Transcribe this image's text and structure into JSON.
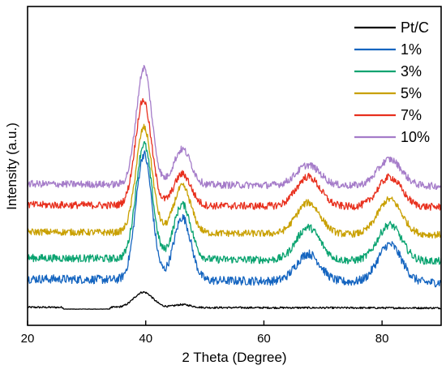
{
  "chart_data": {
    "type": "line",
    "xlabel": "2 Theta (Degree)",
    "ylabel": "Intensity (a.u.)",
    "xlim": [
      20,
      90
    ],
    "xticks": [
      20,
      40,
      60,
      80
    ],
    "grid": false,
    "legend_position": "top-right",
    "stacked_offset": true,
    "series": [
      {
        "name": "Pt/C",
        "color": "#000000",
        "peaks": [
          {
            "x": 39.6,
            "height": 0.42
          },
          {
            "x": 46.2,
            "height": 0.08
          }
        ],
        "baseline_start": 0.05,
        "baseline_end": 0.03
      },
      {
        "name": "1%",
        "color": "#1565c0",
        "peaks": [
          {
            "x": 39.7,
            "height": 1.0
          },
          {
            "x": 46.2,
            "height": 0.5
          },
          {
            "x": 67.5,
            "height": 0.22
          },
          {
            "x": 81.3,
            "height": 0.3
          }
        ],
        "baseline_start": 0.06,
        "baseline_end": 0.03
      },
      {
        "name": "3%",
        "color": "#0aa370",
        "peaks": [
          {
            "x": 39.7,
            "height": 1.05
          },
          {
            "x": 46.2,
            "height": 0.5
          },
          {
            "x": 67.5,
            "height": 0.3
          },
          {
            "x": 81.3,
            "height": 0.33
          }
        ],
        "baseline_start": 0.06,
        "baseline_end": 0.03
      },
      {
        "name": "5%",
        "color": "#c9a000",
        "peaks": [
          {
            "x": 39.7,
            "height": 1.08
          },
          {
            "x": 46.2,
            "height": 0.48
          },
          {
            "x": 67.5,
            "height": 0.32
          },
          {
            "x": 81.3,
            "height": 0.36
          }
        ],
        "baseline_start": 0.06,
        "baseline_end": 0.03
      },
      {
        "name": "7%",
        "color": "#e8301e",
        "peaks": [
          {
            "x": 39.6,
            "height": 1.0
          },
          {
            "x": 46.2,
            "height": 0.3
          },
          {
            "x": 67.5,
            "height": 0.28
          },
          {
            "x": 81.3,
            "height": 0.28
          }
        ],
        "baseline_start": 0.05,
        "baseline_end": 0.03
      },
      {
        "name": "10%",
        "color": "#a57cc9",
        "peaks": [
          {
            "x": 39.7,
            "height": 1.15
          },
          {
            "x": 46.2,
            "height": 0.35
          },
          {
            "x": 67.5,
            "height": 0.2
          },
          {
            "x": 81.3,
            "height": 0.26
          }
        ],
        "baseline_start": 0.05,
        "baseline_end": 0.03
      }
    ]
  }
}
